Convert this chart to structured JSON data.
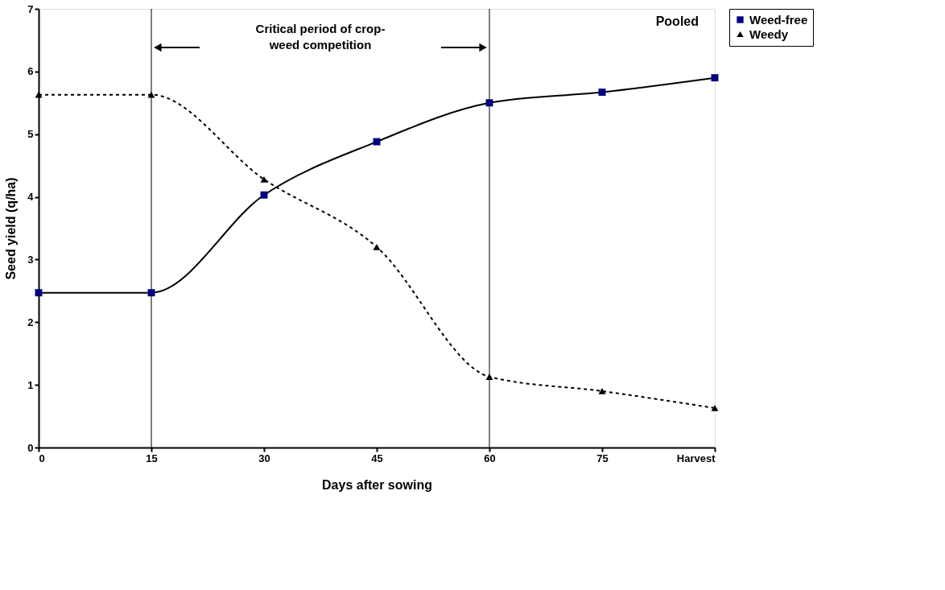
{
  "chart_data": {
    "type": "line",
    "xlabel": "Days after sowing",
    "ylabel": "Seed yield (q/ha)",
    "categories": [
      "0",
      "15",
      "30",
      "45",
      "60",
      "75",
      "Harvest"
    ],
    "series": [
      {
        "name": "Weed-free",
        "color": "#000080",
        "marker": "square",
        "line_style": "solid",
        "values": [
          2.47,
          2.47,
          4.03,
          4.88,
          5.5,
          5.67,
          5.9
        ]
      },
      {
        "name": "Weedy",
        "color": "#000000",
        "marker": "triangle",
        "line_style": "dashed",
        "values": [
          5.63,
          5.63,
          4.28,
          3.2,
          1.13,
          0.9,
          0.63
        ]
      }
    ],
    "ylim": [
      0,
      7
    ],
    "yticks": [
      0,
      1,
      2,
      3,
      4,
      5,
      6,
      7
    ],
    "grid": false,
    "legend": "right",
    "ref_lines": [
      {
        "axis": "x",
        "value": "15",
        "label": null
      },
      {
        "axis": "x",
        "value": "60",
        "label": null
      }
    ],
    "annotations": [
      "Pooled",
      "Critical period of crop-\nweed competition"
    ]
  }
}
